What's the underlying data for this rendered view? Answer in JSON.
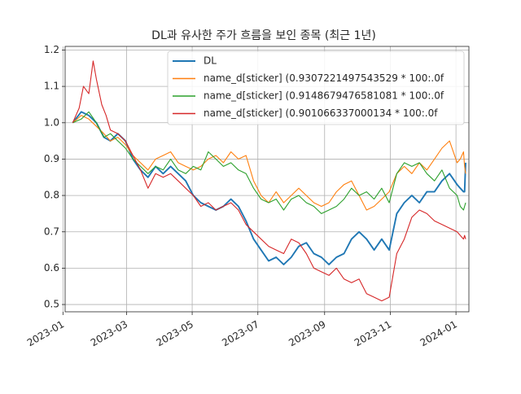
{
  "chart_data": {
    "type": "line",
    "title": "DL과 유사한 주가 흐름을 보인 종목 (최근 1년)",
    "xlabel": "",
    "ylabel": "",
    "xlim": [
      "2023-01-03",
      "2024-01-13"
    ],
    "ylim": [
      0.48,
      1.21
    ],
    "x_ticks": [
      "2023-01",
      "2023-03",
      "2023-05",
      "2023-07",
      "2023-09",
      "2023-11",
      "2024-01"
    ],
    "x_tick_dates": [
      "2023-01-01",
      "2023-03-01",
      "2023-05-01",
      "2023-07-01",
      "2023-09-01",
      "2023-11-01",
      "2024-01-01"
    ],
    "y_ticks": [
      "0.5",
      "0.6",
      "0.7",
      "0.8",
      "0.9",
      "1.0",
      "1.1",
      "1.2"
    ],
    "y_tick_values": [
      0.5,
      0.6,
      0.7,
      0.8,
      0.9,
      1.0,
      1.1,
      1.2
    ],
    "grid": true,
    "legend_position": "top-right",
    "series": [
      {
        "name": "DL",
        "color": "#1f77b4",
        "points": [
          [
            "2023-01-10",
            1.0
          ],
          [
            "2023-01-18",
            1.03
          ],
          [
            "2023-01-25",
            1.02
          ],
          [
            "2023-02-01",
            1.0
          ],
          [
            "2023-02-08",
            0.96
          ],
          [
            "2023-02-14",
            0.95
          ],
          [
            "2023-02-21",
            0.97
          ],
          [
            "2023-02-28",
            0.95
          ],
          [
            "2023-03-07",
            0.9
          ],
          [
            "2023-03-14",
            0.87
          ],
          [
            "2023-03-21",
            0.85
          ],
          [
            "2023-03-28",
            0.88
          ],
          [
            "2023-04-04",
            0.86
          ],
          [
            "2023-04-11",
            0.88
          ],
          [
            "2023-04-18",
            0.86
          ],
          [
            "2023-04-25",
            0.84
          ],
          [
            "2023-05-02",
            0.8
          ],
          [
            "2023-05-09",
            0.78
          ],
          [
            "2023-05-16",
            0.77
          ],
          [
            "2023-05-23",
            0.76
          ],
          [
            "2023-05-30",
            0.77
          ],
          [
            "2023-06-06",
            0.79
          ],
          [
            "2023-06-13",
            0.77
          ],
          [
            "2023-06-20",
            0.73
          ],
          [
            "2023-06-27",
            0.68
          ],
          [
            "2023-07-04",
            0.65
          ],
          [
            "2023-07-11",
            0.62
          ],
          [
            "2023-07-18",
            0.63
          ],
          [
            "2023-07-25",
            0.61
          ],
          [
            "2023-08-01",
            0.63
          ],
          [
            "2023-08-08",
            0.66
          ],
          [
            "2023-08-15",
            0.67
          ],
          [
            "2023-08-22",
            0.64
          ],
          [
            "2023-08-29",
            0.63
          ],
          [
            "2023-09-05",
            0.61
          ],
          [
            "2023-09-12",
            0.63
          ],
          [
            "2023-09-19",
            0.64
          ],
          [
            "2023-09-26",
            0.68
          ],
          [
            "2023-10-03",
            0.7
          ],
          [
            "2023-10-10",
            0.68
          ],
          [
            "2023-10-17",
            0.65
          ],
          [
            "2023-10-24",
            0.68
          ],
          [
            "2023-10-31",
            0.65
          ],
          [
            "2023-11-07",
            0.75
          ],
          [
            "2023-11-14",
            0.78
          ],
          [
            "2023-11-21",
            0.8
          ],
          [
            "2023-11-28",
            0.78
          ],
          [
            "2023-12-05",
            0.81
          ],
          [
            "2023-12-12",
            0.81
          ],
          [
            "2023-12-19",
            0.84
          ],
          [
            "2023-12-26",
            0.86
          ],
          [
            "2024-01-02",
            0.83
          ],
          [
            "2024-01-05",
            0.82
          ],
          [
            "2024-01-08",
            0.81
          ],
          [
            "2024-01-09",
            0.81
          ],
          [
            "2024-01-10",
            0.89
          ]
        ]
      },
      {
        "name": "name_d[sticker]  (0.9307221497543529 * 100:.0f",
        "color": "#ff7f0e",
        "points": [
          [
            "2023-01-10",
            1.0
          ],
          [
            "2023-01-18",
            1.02
          ],
          [
            "2023-01-25",
            1.01
          ],
          [
            "2023-02-01",
            0.99
          ],
          [
            "2023-02-08",
            0.97
          ],
          [
            "2023-02-14",
            0.95
          ],
          [
            "2023-02-21",
            0.96
          ],
          [
            "2023-02-28",
            0.94
          ],
          [
            "2023-03-07",
            0.91
          ],
          [
            "2023-03-14",
            0.89
          ],
          [
            "2023-03-21",
            0.87
          ],
          [
            "2023-03-28",
            0.9
          ],
          [
            "2023-04-04",
            0.91
          ],
          [
            "2023-04-11",
            0.92
          ],
          [
            "2023-04-18",
            0.89
          ],
          [
            "2023-04-25",
            0.88
          ],
          [
            "2023-05-02",
            0.87
          ],
          [
            "2023-05-09",
            0.88
          ],
          [
            "2023-05-16",
            0.9
          ],
          [
            "2023-05-23",
            0.91
          ],
          [
            "2023-05-30",
            0.89
          ],
          [
            "2023-06-06",
            0.92
          ],
          [
            "2023-06-13",
            0.9
          ],
          [
            "2023-06-20",
            0.91
          ],
          [
            "2023-06-27",
            0.84
          ],
          [
            "2023-07-04",
            0.8
          ],
          [
            "2023-07-11",
            0.78
          ],
          [
            "2023-07-18",
            0.81
          ],
          [
            "2023-07-25",
            0.78
          ],
          [
            "2023-08-01",
            0.8
          ],
          [
            "2023-08-08",
            0.82
          ],
          [
            "2023-08-15",
            0.8
          ],
          [
            "2023-08-22",
            0.78
          ],
          [
            "2023-08-29",
            0.77
          ],
          [
            "2023-09-05",
            0.78
          ],
          [
            "2023-09-12",
            0.81
          ],
          [
            "2023-09-19",
            0.83
          ],
          [
            "2023-09-26",
            0.84
          ],
          [
            "2023-10-03",
            0.8
          ],
          [
            "2023-10-10",
            0.76
          ],
          [
            "2023-10-17",
            0.77
          ],
          [
            "2023-10-24",
            0.79
          ],
          [
            "2023-10-31",
            0.81
          ],
          [
            "2023-11-07",
            0.86
          ],
          [
            "2023-11-14",
            0.88
          ],
          [
            "2023-11-21",
            0.86
          ],
          [
            "2023-11-28",
            0.89
          ],
          [
            "2023-12-05",
            0.87
          ],
          [
            "2023-12-12",
            0.9
          ],
          [
            "2023-12-19",
            0.93
          ],
          [
            "2023-12-26",
            0.95
          ],
          [
            "2024-01-02",
            0.89
          ],
          [
            "2024-01-05",
            0.9
          ],
          [
            "2024-01-08",
            0.92
          ],
          [
            "2024-01-09",
            0.88
          ],
          [
            "2024-01-10",
            0.86
          ]
        ]
      },
      {
        "name": "name_d[sticker]  (0.9148679476581081 * 100:.0f",
        "color": "#2ca02c",
        "points": [
          [
            "2023-01-10",
            1.0
          ],
          [
            "2023-01-18",
            1.01
          ],
          [
            "2023-01-25",
            1.03
          ],
          [
            "2023-02-01",
            1.0
          ],
          [
            "2023-02-08",
            0.96
          ],
          [
            "2023-02-14",
            0.97
          ],
          [
            "2023-02-21",
            0.95
          ],
          [
            "2023-02-28",
            0.93
          ],
          [
            "2023-03-07",
            0.9
          ],
          [
            "2023-03-14",
            0.88
          ],
          [
            "2023-03-21",
            0.86
          ],
          [
            "2023-03-28",
            0.88
          ],
          [
            "2023-04-04",
            0.87
          ],
          [
            "2023-04-11",
            0.9
          ],
          [
            "2023-04-18",
            0.87
          ],
          [
            "2023-04-25",
            0.86
          ],
          [
            "2023-05-02",
            0.88
          ],
          [
            "2023-05-09",
            0.87
          ],
          [
            "2023-05-16",
            0.92
          ],
          [
            "2023-05-23",
            0.9
          ],
          [
            "2023-05-30",
            0.88
          ],
          [
            "2023-06-06",
            0.89
          ],
          [
            "2023-06-13",
            0.87
          ],
          [
            "2023-06-20",
            0.86
          ],
          [
            "2023-06-27",
            0.82
          ],
          [
            "2023-07-04",
            0.79
          ],
          [
            "2023-07-11",
            0.78
          ],
          [
            "2023-07-18",
            0.79
          ],
          [
            "2023-07-25",
            0.76
          ],
          [
            "2023-08-01",
            0.79
          ],
          [
            "2023-08-08",
            0.8
          ],
          [
            "2023-08-15",
            0.78
          ],
          [
            "2023-08-22",
            0.77
          ],
          [
            "2023-08-29",
            0.75
          ],
          [
            "2023-09-05",
            0.76
          ],
          [
            "2023-09-12",
            0.77
          ],
          [
            "2023-09-19",
            0.79
          ],
          [
            "2023-09-26",
            0.82
          ],
          [
            "2023-10-03",
            0.8
          ],
          [
            "2023-10-10",
            0.81
          ],
          [
            "2023-10-17",
            0.79
          ],
          [
            "2023-10-24",
            0.82
          ],
          [
            "2023-10-31",
            0.78
          ],
          [
            "2023-11-07",
            0.86
          ],
          [
            "2023-11-14",
            0.89
          ],
          [
            "2023-11-21",
            0.88
          ],
          [
            "2023-11-28",
            0.89
          ],
          [
            "2023-12-05",
            0.86
          ],
          [
            "2023-12-12",
            0.84
          ],
          [
            "2023-12-19",
            0.87
          ],
          [
            "2023-12-26",
            0.82
          ],
          [
            "2024-01-02",
            0.8
          ],
          [
            "2024-01-05",
            0.77
          ],
          [
            "2024-01-08",
            0.76
          ],
          [
            "2024-01-09",
            0.77
          ],
          [
            "2024-01-10",
            0.78
          ]
        ]
      },
      {
        "name": "name_d[sticker]  (0.901066337000134 * 100:.0f",
        "color": "#d62728",
        "points": [
          [
            "2023-01-10",
            1.0
          ],
          [
            "2023-01-16",
            1.04
          ],
          [
            "2023-01-20",
            1.1
          ],
          [
            "2023-01-25",
            1.08
          ],
          [
            "2023-01-29",
            1.17
          ],
          [
            "2023-02-01",
            1.12
          ],
          [
            "2023-02-06",
            1.05
          ],
          [
            "2023-02-10",
            1.02
          ],
          [
            "2023-02-14",
            0.98
          ],
          [
            "2023-02-21",
            0.97
          ],
          [
            "2023-02-28",
            0.95
          ],
          [
            "2023-03-07",
            0.91
          ],
          [
            "2023-03-14",
            0.87
          ],
          [
            "2023-03-21",
            0.82
          ],
          [
            "2023-03-28",
            0.86
          ],
          [
            "2023-04-04",
            0.85
          ],
          [
            "2023-04-11",
            0.86
          ],
          [
            "2023-04-18",
            0.84
          ],
          [
            "2023-04-25",
            0.82
          ],
          [
            "2023-05-02",
            0.8
          ],
          [
            "2023-05-09",
            0.77
          ],
          [
            "2023-05-16",
            0.78
          ],
          [
            "2023-05-23",
            0.76
          ],
          [
            "2023-05-30",
            0.77
          ],
          [
            "2023-06-06",
            0.78
          ],
          [
            "2023-06-13",
            0.76
          ],
          [
            "2023-06-20",
            0.72
          ],
          [
            "2023-06-27",
            0.7
          ],
          [
            "2023-07-04",
            0.68
          ],
          [
            "2023-07-11",
            0.66
          ],
          [
            "2023-07-18",
            0.65
          ],
          [
            "2023-07-25",
            0.64
          ],
          [
            "2023-08-01",
            0.68
          ],
          [
            "2023-08-08",
            0.67
          ],
          [
            "2023-08-15",
            0.64
          ],
          [
            "2023-08-22",
            0.6
          ],
          [
            "2023-08-29",
            0.59
          ],
          [
            "2023-09-05",
            0.58
          ],
          [
            "2023-09-12",
            0.6
          ],
          [
            "2023-09-19",
            0.57
          ],
          [
            "2023-09-26",
            0.56
          ],
          [
            "2023-10-03",
            0.57
          ],
          [
            "2023-10-10",
            0.53
          ],
          [
            "2023-10-17",
            0.52
          ],
          [
            "2023-10-24",
            0.51
          ],
          [
            "2023-10-31",
            0.52
          ],
          [
            "2023-11-07",
            0.64
          ],
          [
            "2023-11-14",
            0.68
          ],
          [
            "2023-11-21",
            0.74
          ],
          [
            "2023-11-28",
            0.76
          ],
          [
            "2023-12-05",
            0.75
          ],
          [
            "2023-12-12",
            0.73
          ],
          [
            "2023-12-19",
            0.72
          ],
          [
            "2023-12-26",
            0.71
          ],
          [
            "2024-01-02",
            0.7
          ],
          [
            "2024-01-05",
            0.69
          ],
          [
            "2024-01-08",
            0.68
          ],
          [
            "2024-01-09",
            0.69
          ],
          [
            "2024-01-10",
            0.68
          ]
        ]
      }
    ]
  }
}
